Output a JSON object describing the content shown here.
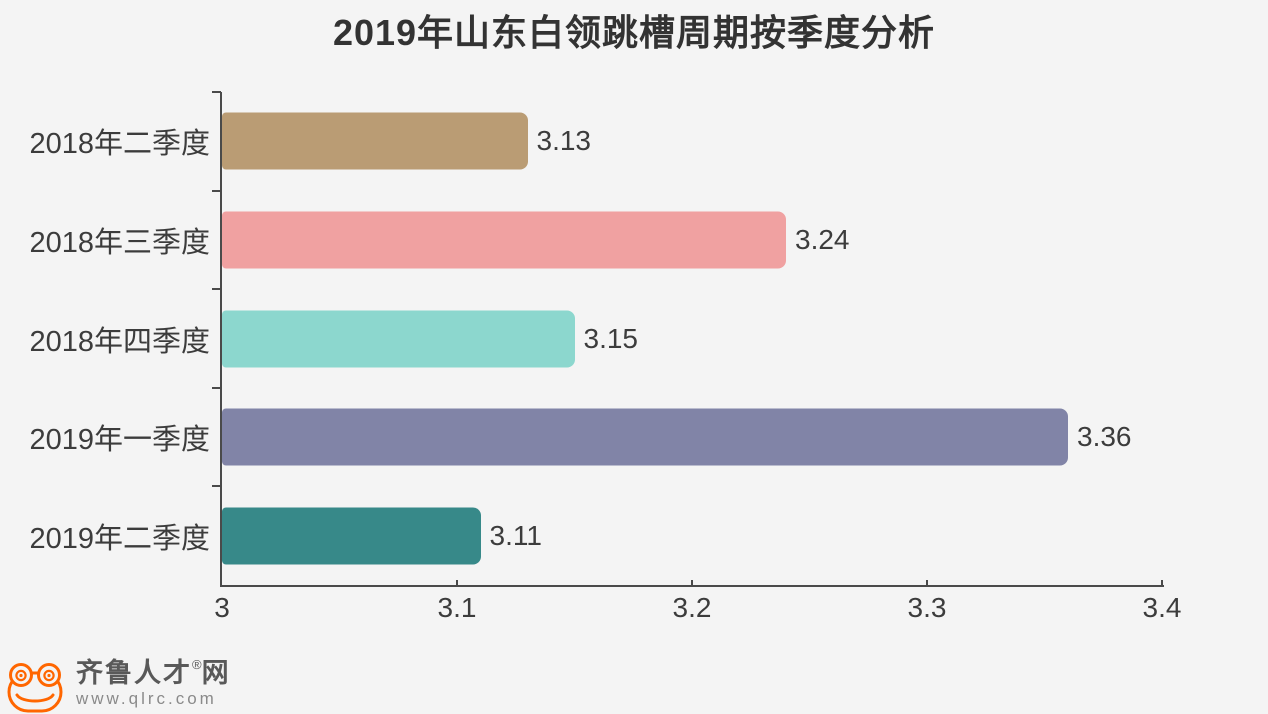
{
  "chart_data": {
    "type": "bar",
    "orientation": "horizontal",
    "title": "2019年山东白领跳槽周期按季度分析",
    "categories": [
      "2018年二季度",
      "2018年三季度",
      "2018年四季度",
      "2019年一季度",
      "2019年二季度"
    ],
    "values": [
      3.13,
      3.24,
      3.15,
      3.36,
      3.11
    ],
    "value_labels": [
      "3.13",
      "3.24",
      "3.15",
      "3.36",
      "3.11"
    ],
    "bar_colors": [
      "#ba9c74",
      "#f0a1a1",
      "#8cd7ce",
      "#8184a7",
      "#378989"
    ],
    "xlim": [
      3,
      3.4
    ],
    "x_tick_values": [
      3,
      3.1,
      3.2,
      3.3,
      3.4
    ],
    "x_tick_labels": [
      "3",
      "3.1",
      "3.2",
      "3.3",
      "3.4"
    ],
    "grid": false,
    "legend": "none",
    "axis_color": "#4a4a4a",
    "label_color": "#3c3c3c",
    "background": "#f4f4f4"
  },
  "branding": {
    "logo_name": "齐鲁人才网",
    "logo_main": "齐鲁人才",
    "registered_mark": "®",
    "logo_suffix": "网",
    "website": "www.qlrc.com",
    "frog_icon_color": "#ff6600",
    "logo_text_color": "#595959",
    "website_text_color": "#8a8a8a"
  }
}
